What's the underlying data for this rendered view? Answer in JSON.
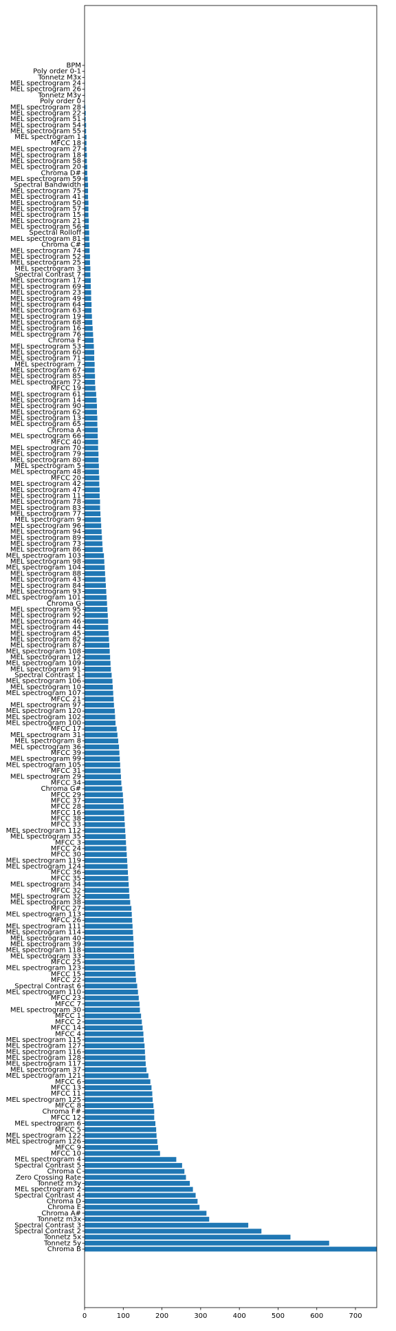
{
  "chart_data": {
    "type": "barh",
    "color": "#1f77b4",
    "categories": [
      "BPM",
      "Poly order 0-1",
      "Tonnetz M3x",
      "MEL spectrogram 24",
      "MEL spectrogram 26",
      "Tonnetz M3y",
      "Poly order 0",
      "MEL spectrogram 28",
      "MEL spectrogram 22",
      "MEL spectrogram 51",
      "MEL spectrogram 54",
      "MEL spectrogram 55",
      "MEL spectrogram 1",
      "MFCC 18",
      "MEL spectrogram 27",
      "MEL spectrogram 18",
      "MEL spectrogram 58",
      "MEL spectrogram 20",
      "Chroma D#",
      "MEL spectrogram 59",
      "Spectral Bandwidth",
      "MEL spectrogram 75",
      "MEL spectrogram 41",
      "MEL spectrogram 50",
      "MEL spectrogram 57",
      "MEL spectrogram 15",
      "MEL spectrogram 21",
      "MEL spectrogram 56",
      "Spectral Rolloff",
      "MEL spectrogram 81",
      "Chroma C#",
      "MEL spectrogram 74",
      "MEL spectrogram 52",
      "MEL spectrogram 25",
      "MEL spectrogram 3",
      "Spectral Contrast 7",
      "MEL spectrogram 17",
      "MEL spectrogram 69",
      "MEL spectrogram 23",
      "MEL spectrogram 49",
      "MEL spectrogram 64",
      "MEL spectrogram 63",
      "MEL spectrogram 19",
      "MEL spectrogram 68",
      "MEL spectrogram 16",
      "MEL spectrogram 76",
      "Chroma F",
      "MEL spectrogram 53",
      "MEL spectrogram 60",
      "MEL spectrogram 71",
      "MEL spectrogram 7",
      "MEL spectrogram 67",
      "MEL spectrogram 85",
      "MEL spectrogram 72",
      "MFCC 19",
      "MEL spectrogram 61",
      "MEL spectrogram 14",
      "MEL spectrogram 90",
      "MEL spectrogram 62",
      "MEL spectrogram 13",
      "MEL spectrogram 65",
      "Chroma A",
      "MEL spectrogram 66",
      "MFCC 40",
      "MEL spectrogram 70",
      "MEL spectrogram 79",
      "MEL spectrogram 80",
      "MEL spectrogram 5",
      "MEL spectrogram 48",
      "MFCC 20",
      "MEL spectrogram 42",
      "MEL spectrogram 47",
      "MEL spectrogram 11",
      "MEL spectrogram 78",
      "MEL spectrogram 83",
      "MEL spectrogram 77",
      "MEL spectrogram 9",
      "MEL spectrogram 96",
      "MEL spectrogram 94",
      "MEL spectrogram 89",
      "MEL spectrogram 73",
      "MEL spectrogram 86",
      "MEL spectrogram 103",
      "MEL spectrogram 98",
      "MEL spectrogram 104",
      "MEL spectrogram 88",
      "MEL spectrogram 43",
      "MEL spectrogram 84",
      "MEL spectrogram 93",
      "MEL spectrogram 101",
      "Chroma G",
      "MEL spectrogram 95",
      "MEL spectrogram 92",
      "MEL spectrogram 46",
      "MEL spectrogram 44",
      "MEL spectrogram 45",
      "MEL spectrogram 82",
      "MEL spectrogram 87",
      "MEL spectrogram 108",
      "MEL spectrogram 12",
      "MEL spectrogram 109",
      "MEL spectrogram 91",
      "Spectral Contrast 1",
      "MEL spectrogram 106",
      "MEL spectrogram 10",
      "MEL spectrogram 107",
      "MFCC 21",
      "MEL spectrogram 97",
      "MEL spectrogram 120",
      "MEL spectrogram 102",
      "MEL spectrogram 100",
      "MFCC 17",
      "MEL spectrogram 31",
      "MEL spectrogram 8",
      "MEL spectrogram 36",
      "MFCC 39",
      "MEL spectrogram 99",
      "MEL spectrogram 105",
      "MFCC 31",
      "MEL spectrogram 29",
      "MFCC 34",
      "Chroma G#",
      "MFCC 29",
      "MFCC 37",
      "MFCC 28",
      "MFCC 16",
      "MFCC 38",
      "MFCC 33",
      "MEL spectrogram 112",
      "MEL spectrogram 35",
      "MFCC 3",
      "MFCC 24",
      "MFCC 30",
      "MEL spectrogram 119",
      "MEL spectrogram 124",
      "MFCC 36",
      "MFCC 35",
      "MEL spectrogram 34",
      "MFCC 32",
      "MEL spectrogram 32",
      "MEL spectrogram 38",
      "MFCC 27",
      "MEL spectrogram 113",
      "MFCC 26",
      "MEL spectrogram 111",
      "MEL spectrogram 114",
      "MEL spectrogram 40",
      "MEL spectrogram 39",
      "MEL spectrogram 118",
      "MEL spectrogram 33",
      "MFCC 25",
      "MEL spectrogram 123",
      "MFCC 15",
      "MFCC 22",
      "Spectral Contrast 6",
      "MEL spectrogram 110",
      "MFCC 23",
      "MFCC 7",
      "MEL spectrogram 30",
      "MFCC 1",
      "MFCC 2",
      "MFCC 14",
      "MFCC 4",
      "MEL spectrogram 115",
      "MEL spectrogram 127",
      "MEL spectrogram 116",
      "MEL spectrogram 128",
      "MEL spectrogram 117",
      "MEL spectrogram 37",
      "MEL spectrogram 121",
      "MFCC 6",
      "MFCC 13",
      "MFCC 11",
      "MEL spectrogram 125",
      "MFCC 8",
      "Chroma F#",
      "MFCC 12",
      "MEL spectrogram 6",
      "MFCC 5",
      "MEL spectrogram 122",
      "MEL spectrogram 126",
      "MFCC 9",
      "MFCC 10",
      "MEL spectrogram 4",
      "Spectral Contrast 5",
      "Chroma C",
      "Zero Crossing Rate",
      "Tonnetz m3y",
      "MEL spectrogram 2",
      "Spectral Contrast 4",
      "Chroma D",
      "Chroma E",
      "Chroma A#",
      "Tonnetz m3x",
      "Spectral Contrast 3",
      "Spectral Contrast 2",
      "Tonnetz 5x",
      "Tonnetz 5y",
      "Chroma B"
    ],
    "values": [
      0.2,
      0.3,
      0.5,
      1,
      1,
      1,
      1,
      2,
      3,
      3,
      4,
      4,
      5,
      5,
      5,
      6,
      6,
      7,
      7,
      8,
      9,
      9,
      9,
      10,
      10,
      10,
      11,
      11,
      12,
      12,
      13,
      13,
      14,
      14,
      15,
      15,
      16,
      16,
      17,
      17,
      18,
      18,
      19,
      20,
      21,
      22,
      23,
      24,
      25,
      25,
      26,
      26,
      27,
      27,
      28,
      30,
      31,
      32,
      32,
      33,
      33,
      34,
      34,
      35,
      35,
      36,
      36,
      37,
      37,
      38,
      38,
      39,
      39,
      40,
      40,
      41,
      42,
      43,
      44,
      45,
      46,
      47,
      50,
      51,
      52,
      53,
      54,
      55,
      56,
      57,
      58,
      59,
      60,
      61,
      61,
      62,
      63,
      64,
      65,
      66,
      67,
      68,
      70,
      72,
      73,
      74,
      75,
      76,
      78,
      79,
      80,
      83,
      85,
      87,
      89,
      90,
      91,
      92,
      93,
      94,
      95,
      97,
      99,
      100,
      101,
      102,
      103,
      104,
      105,
      106,
      107,
      108,
      109,
      110,
      111,
      112,
      113,
      114,
      115,
      116,
      118,
      121,
      122,
      123,
      124,
      125,
      126,
      127,
      127,
      128,
      129,
      130,
      132,
      133,
      136,
      138,
      140,
      142,
      143,
      146,
      148,
      150,
      152,
      153,
      155,
      156,
      157,
      158,
      160,
      165,
      170,
      173,
      175,
      176,
      178,
      180,
      180,
      183,
      185,
      186,
      188,
      190,
      195,
      237,
      252,
      258,
      262,
      272,
      280,
      287,
      292,
      297,
      315,
      322,
      423,
      457,
      532,
      632,
      755
    ],
    "xlim": [
      0,
      755
    ],
    "xticks": [
      0,
      100,
      200,
      300,
      400,
      500,
      600,
      700
    ]
  }
}
